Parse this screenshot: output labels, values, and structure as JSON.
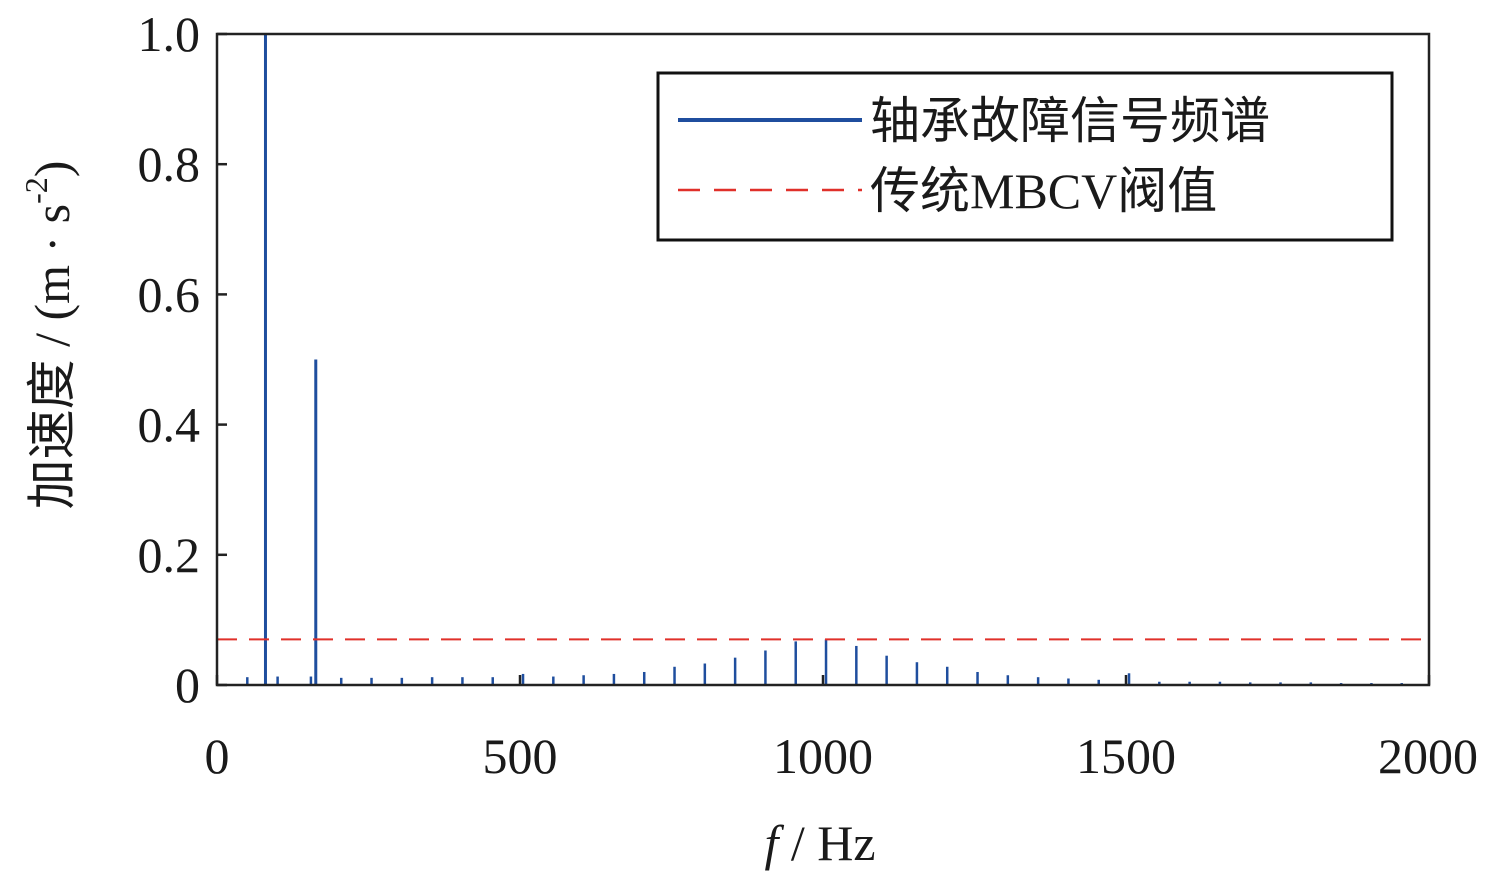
{
  "chart_data": {
    "type": "line",
    "title": "",
    "xlabel_italic": "f",
    "xlabel_rest": " / Hz",
    "ylabel_main": "加速度 / (m · s",
    "ylabel_exp": "-2",
    "ylabel_close": ")",
    "xlim": [
      0,
      2000
    ],
    "ylim": [
      0,
      1.0
    ],
    "x_ticks": [
      0,
      500,
      1000,
      1500,
      2000
    ],
    "x_tick_labels": [
      "0",
      "500",
      "1000",
      "1500",
      "2000"
    ],
    "y_ticks": [
      0,
      0.2,
      0.4,
      0.6,
      0.8,
      1.0
    ],
    "y_tick_labels": [
      "0",
      "0.2",
      "0.4",
      "0.6",
      "0.8",
      "1.0"
    ],
    "grid": false,
    "legend_position": "top-right",
    "series": [
      {
        "name": "轴承故障信号频谱",
        "kind": "spectrum",
        "color": "#1f4e9e",
        "x": [
          50,
          80,
          100,
          155,
          163,
          205,
          255,
          305,
          355,
          405,
          455,
          505,
          555,
          605,
          655,
          705,
          755,
          805,
          855,
          905,
          955,
          1005,
          1055,
          1105,
          1155,
          1205,
          1255,
          1305,
          1355,
          1405,
          1455,
          1505,
          1555,
          1605,
          1655,
          1705,
          1755,
          1805,
          1855,
          1905,
          1955
        ],
        "y": [
          0.012,
          1.0,
          0.013,
          0.013,
          0.5,
          0.011,
          0.011,
          0.011,
          0.012,
          0.012,
          0.012,
          0.017,
          0.013,
          0.015,
          0.017,
          0.02,
          0.028,
          0.033,
          0.042,
          0.053,
          0.067,
          0.07,
          0.06,
          0.045,
          0.035,
          0.028,
          0.02,
          0.015,
          0.012,
          0.01,
          0.008,
          0.018,
          0.005,
          0.005,
          0.005,
          0.004,
          0.004,
          0.004,
          0.003,
          0.003,
          0.003
        ]
      },
      {
        "name": "传统MBCV阀值",
        "kind": "threshold",
        "color": "#e0302a",
        "value": 0.07
      }
    ]
  }
}
